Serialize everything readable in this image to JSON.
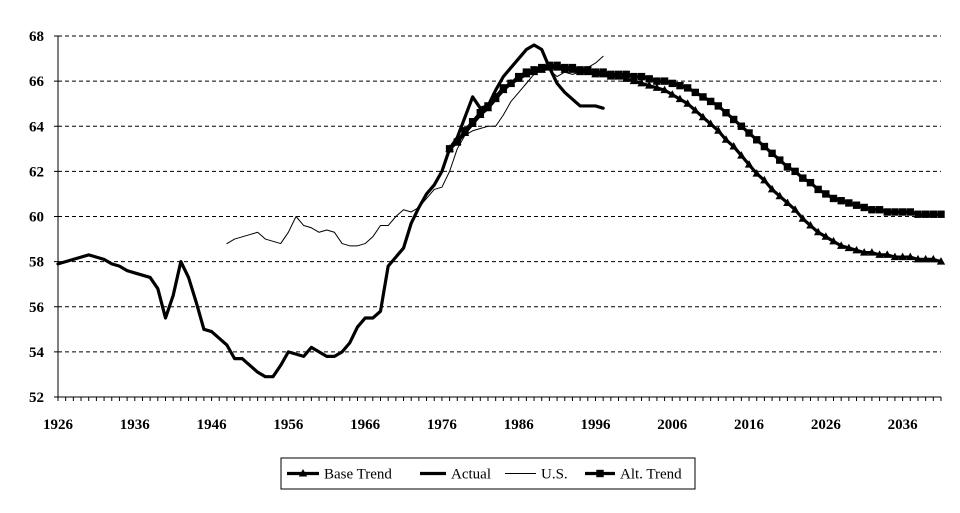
{
  "chart_data": {
    "type": "line",
    "title": "",
    "xlabel": "",
    "ylabel": "",
    "xlim": [
      1926,
      2041
    ],
    "ylim": [
      52,
      68
    ],
    "x_ticks": [
      1926,
      1936,
      1946,
      1956,
      1966,
      1976,
      1986,
      1996,
      2006,
      2016,
      2026,
      2036
    ],
    "y_ticks": [
      52,
      54,
      56,
      58,
      60,
      62,
      64,
      66,
      68
    ],
    "grid": "horizontal dashed",
    "legend_placement": "bottom-center",
    "series": [
      {
        "name": "Base Trend",
        "marker": "triangle",
        "x": [
          1977,
          1978,
          1979,
          1980,
          1981,
          1982,
          1983,
          1984,
          1985,
          1986,
          1987,
          1988,
          1989,
          1990,
          1991,
          1992,
          1993,
          1994,
          1995,
          1996,
          1997,
          1998,
          1999,
          2000,
          2001,
          2002,
          2003,
          2004,
          2005,
          2006,
          2007,
          2008,
          2009,
          2010,
          2011,
          2012,
          2013,
          2014,
          2015,
          2016,
          2017,
          2018,
          2019,
          2020,
          2021,
          2022,
          2023,
          2024,
          2025,
          2026,
          2027,
          2028,
          2029,
          2030,
          2031,
          2032,
          2033,
          2034,
          2035,
          2036,
          2037,
          2038,
          2039,
          2040,
          2041
        ],
        "values": [
          63.0,
          63.3,
          63.7,
          64.1,
          64.5,
          64.8,
          65.2,
          65.6,
          65.9,
          66.1,
          66.3,
          66.4,
          66.5,
          66.6,
          66.6,
          66.5,
          66.5,
          66.4,
          66.4,
          66.3,
          66.3,
          66.2,
          66.2,
          66.1,
          66.0,
          65.9,
          65.8,
          65.7,
          65.6,
          65.4,
          65.2,
          65.0,
          64.7,
          64.4,
          64.1,
          63.8,
          63.4,
          63.1,
          62.7,
          62.3,
          61.9,
          61.6,
          61.2,
          60.9,
          60.6,
          60.3,
          59.9,
          59.6,
          59.3,
          59.1,
          58.9,
          58.7,
          58.6,
          58.5,
          58.4,
          58.4,
          58.3,
          58.3,
          58.2,
          58.2,
          58.2,
          58.1,
          58.1,
          58.1,
          58.0
        ]
      },
      {
        "name": "Actual",
        "marker": "none",
        "x": [
          1926,
          1927,
          1928,
          1929,
          1930,
          1931,
          1932,
          1933,
          1934,
          1935,
          1936,
          1937,
          1938,
          1939,
          1940,
          1941,
          1942,
          1943,
          1944,
          1945,
          1946,
          1947,
          1948,
          1949,
          1950,
          1951,
          1952,
          1953,
          1954,
          1955,
          1956,
          1957,
          1958,
          1959,
          1960,
          1961,
          1962,
          1963,
          1964,
          1965,
          1966,
          1967,
          1968,
          1969,
          1970,
          1971,
          1972,
          1973,
          1974,
          1975,
          1976,
          1977,
          1978,
          1979,
          1980,
          1981,
          1982,
          1983,
          1984,
          1985,
          1986,
          1987,
          1988,
          1989,
          1990,
          1991,
          1992,
          1993,
          1994,
          1995,
          1996,
          1997
        ],
        "values": [
          57.9,
          58.0,
          58.1,
          58.2,
          58.3,
          58.2,
          58.1,
          57.9,
          57.8,
          57.6,
          57.5,
          57.4,
          57.3,
          56.8,
          55.5,
          56.5,
          58.0,
          57.3,
          56.2,
          55.0,
          54.9,
          54.6,
          54.3,
          53.7,
          53.7,
          53.4,
          53.1,
          52.9,
          52.9,
          53.4,
          54.0,
          53.9,
          53.8,
          54.2,
          54.0,
          53.8,
          53.8,
          54.0,
          54.4,
          55.1,
          55.5,
          55.5,
          55.8,
          57.8,
          58.2,
          58.6,
          59.7,
          60.4,
          61.0,
          61.4,
          62.0,
          63.0,
          63.5,
          64.4,
          65.3,
          64.8,
          64.9,
          65.6,
          66.2,
          66.6,
          67.0,
          67.4,
          67.6,
          67.4,
          66.6,
          65.9,
          65.5,
          65.2,
          64.9,
          64.9,
          64.9,
          64.8
        ]
      },
      {
        "name": "U.S.",
        "marker": "none",
        "x": [
          1948,
          1949,
          1950,
          1951,
          1952,
          1953,
          1954,
          1955,
          1956,
          1957,
          1958,
          1959,
          1960,
          1961,
          1962,
          1963,
          1964,
          1965,
          1966,
          1967,
          1968,
          1969,
          1970,
          1971,
          1972,
          1973,
          1974,
          1975,
          1976,
          1977,
          1978,
          1979,
          1980,
          1981,
          1982,
          1983,
          1984,
          1985,
          1986,
          1987,
          1988,
          1989,
          1990,
          1991,
          1992,
          1993,
          1994,
          1995,
          1996,
          1997
        ],
        "values": [
          58.8,
          59.0,
          59.1,
          59.2,
          59.3,
          59.0,
          58.9,
          58.8,
          59.3,
          60.0,
          59.6,
          59.5,
          59.3,
          59.4,
          59.3,
          58.8,
          58.7,
          58.7,
          58.8,
          59.1,
          59.6,
          59.6,
          60.0,
          60.3,
          60.2,
          60.4,
          60.8,
          61.2,
          61.3,
          62.0,
          63.0,
          63.6,
          63.8,
          63.9,
          64.0,
          64.0,
          64.5,
          65.1,
          65.5,
          65.9,
          66.3,
          66.6,
          66.5,
          66.2,
          66.4,
          66.3,
          66.4,
          66.6,
          66.8,
          67.1
        ]
      },
      {
        "name": "Alt. Trend",
        "marker": "square",
        "x": [
          1977,
          1978,
          1979,
          1980,
          1981,
          1982,
          1983,
          1984,
          1985,
          1986,
          1987,
          1988,
          1989,
          1990,
          1991,
          1992,
          1993,
          1994,
          1995,
          1996,
          1997,
          1998,
          1999,
          2000,
          2001,
          2002,
          2003,
          2004,
          2005,
          2006,
          2007,
          2008,
          2009,
          2010,
          2011,
          2012,
          2013,
          2014,
          2015,
          2016,
          2017,
          2018,
          2019,
          2020,
          2021,
          2022,
          2023,
          2024,
          2025,
          2026,
          2027,
          2028,
          2029,
          2030,
          2031,
          2032,
          2033,
          2034,
          2035,
          2036,
          2037,
          2038,
          2039,
          2040,
          2041
        ],
        "values": [
          63.0,
          63.3,
          63.8,
          64.2,
          64.6,
          64.9,
          65.3,
          65.7,
          65.9,
          66.2,
          66.4,
          66.5,
          66.6,
          66.7,
          66.7,
          66.6,
          66.6,
          66.5,
          66.5,
          66.4,
          66.4,
          66.3,
          66.3,
          66.3,
          66.2,
          66.2,
          66.1,
          66.0,
          66.0,
          65.9,
          65.8,
          65.7,
          65.5,
          65.3,
          65.1,
          64.9,
          64.6,
          64.3,
          64.0,
          63.7,
          63.4,
          63.1,
          62.8,
          62.5,
          62.2,
          62.0,
          61.7,
          61.5,
          61.2,
          61.0,
          60.8,
          60.7,
          60.6,
          60.5,
          60.4,
          60.3,
          60.3,
          60.2,
          60.2,
          60.2,
          60.2,
          60.1,
          60.1,
          60.1,
          60.1
        ]
      }
    ]
  }
}
